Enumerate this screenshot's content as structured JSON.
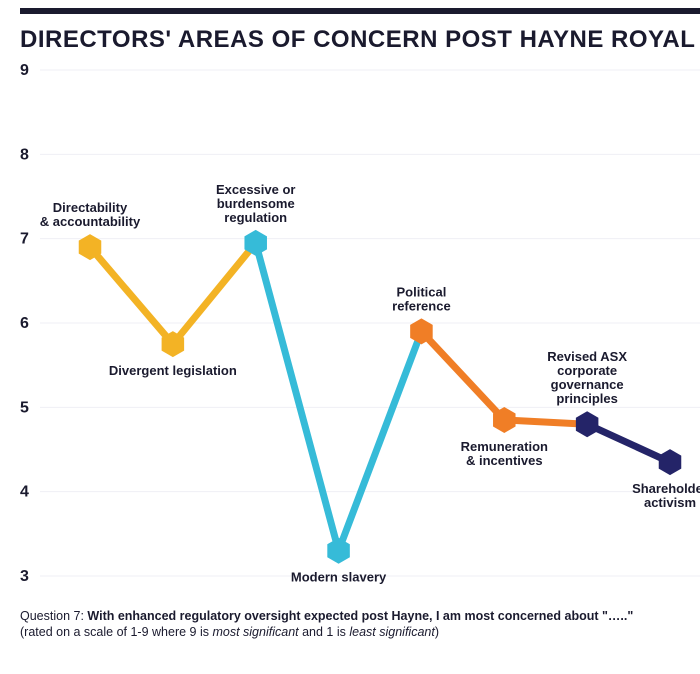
{
  "title": "DIRECTORS' AREAS OF CONCERN POST HAYNE ROYAL COMMISSION",
  "chart": {
    "type": "line",
    "ylim": [
      3,
      9
    ],
    "ytick_step": 1,
    "grid_color": "#efeff4",
    "background_color": "#ffffff",
    "yticklabel_fontsize": 16,
    "label_fontsize": 13,
    "line_width": 7,
    "hex_radius": 13,
    "points": [
      {
        "x": 0,
        "y": 6.9,
        "label_lines": [
          "Directability",
          "& accountability"
        ],
        "label_pos": "above"
      },
      {
        "x": 1,
        "y": 5.75,
        "label_lines": [
          "Divergent legislation"
        ],
        "label_pos": "below"
      },
      {
        "x": 2,
        "y": 6.95,
        "label_lines": [
          "Excessive or",
          "burdensome",
          "regulation"
        ],
        "label_pos": "above"
      },
      {
        "x": 3,
        "y": 3.3,
        "label_lines": [
          "Modern slavery"
        ],
        "label_pos": "below"
      },
      {
        "x": 4,
        "y": 5.9,
        "label_lines": [
          "Political",
          "reference"
        ],
        "label_pos": "above"
      },
      {
        "x": 5,
        "y": 4.85,
        "label_lines": [
          "Remuneration",
          "& incentives"
        ],
        "label_pos": "below"
      },
      {
        "x": 6,
        "y": 4.8,
        "label_lines": [
          "Revised ASX",
          "corporate",
          "governance",
          "principles"
        ],
        "label_pos": "above"
      },
      {
        "x": 7,
        "y": 4.35,
        "label_lines": [
          "Shareholder",
          "activism"
        ],
        "label_pos": "below"
      }
    ],
    "segment_colors": [
      "#f3b325",
      "#f3b325",
      "#36bbd8",
      "#36bbd8",
      "#f07e26",
      "#f07e26",
      "#242468"
    ],
    "hex_colors": [
      "#f3b325",
      "#f3b325",
      "#36bbd8",
      "#36bbd8",
      "#f07e26",
      "#f07e26",
      "#242468",
      "#242468"
    ]
  },
  "footer": {
    "question_prefix": "Question 7: ",
    "question_bold": "With enhanced regulatory oversight expected post Hayne, I am most concerned about \"…..\"",
    "subtext_before": "(rated on a scale of 1-9 where 9 is ",
    "most": "most significant",
    "between": " and 1 is ",
    "least": "least significant",
    "after": ")"
  }
}
